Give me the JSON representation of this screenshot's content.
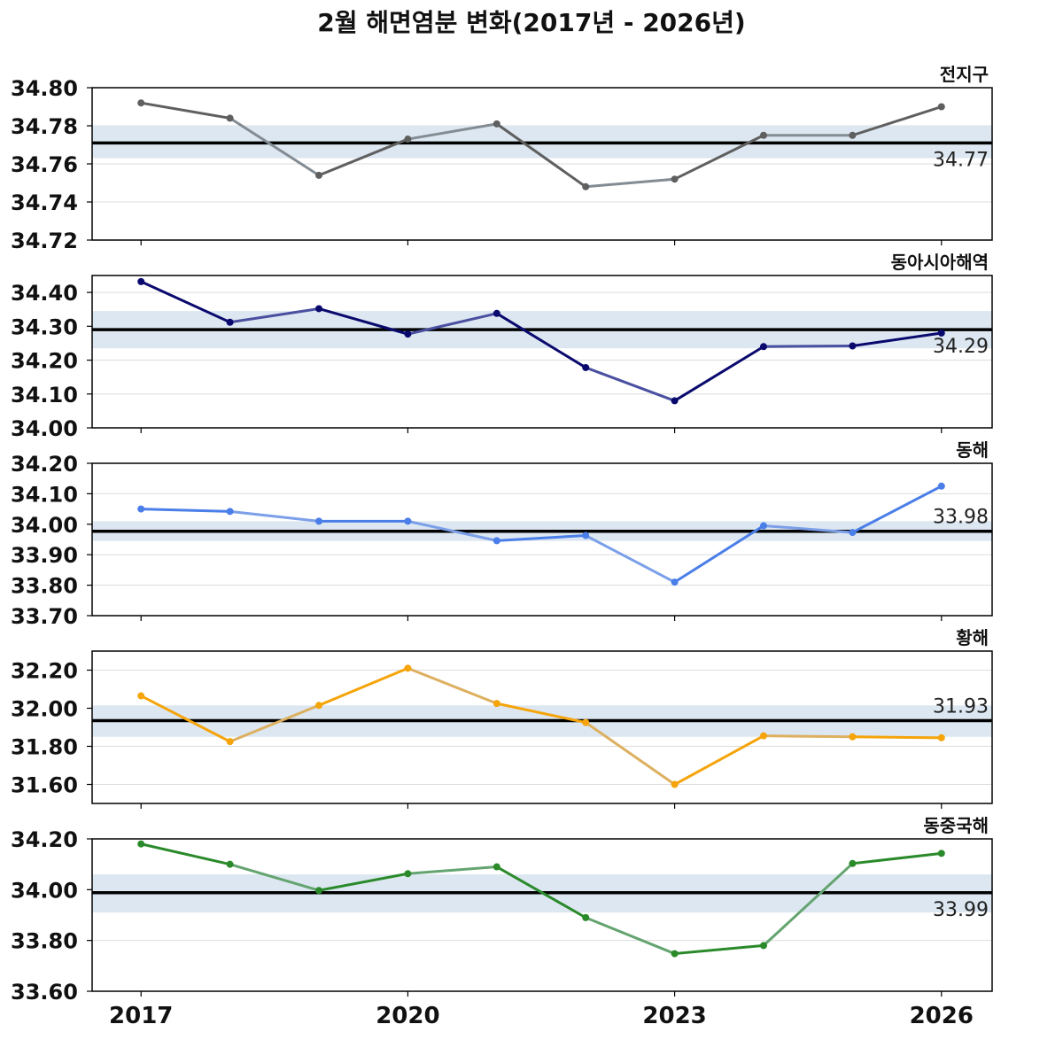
{
  "title": "2월 해면염분 변화(2017년 - 2026년)",
  "chart_data": {
    "type": "line",
    "x": [
      2017,
      2018,
      2019,
      2020,
      2021,
      2022,
      2023,
      2024,
      2025,
      2026
    ],
    "x_tick_labels": [
      "2017",
      "2020",
      "2023",
      "2026"
    ],
    "x_tick_values": [
      2017,
      2020,
      2023,
      2026
    ],
    "band_color": "#dce7f1",
    "mean_line_color": "#000000",
    "panels": [
      {
        "title": "전지구",
        "values": [
          34.792,
          34.784,
          34.754,
          34.773,
          34.781,
          34.748,
          34.752,
          34.775,
          34.775,
          34.79
        ],
        "mean": 34.771,
        "mean_label": "34.77",
        "band": [
          34.763,
          34.78
        ],
        "ylim": [
          34.72,
          34.8
        ],
        "yticks": [
          34.72,
          34.74,
          34.76,
          34.78,
          34.8
        ],
        "ytick_labels": [
          "34.72",
          "34.74",
          "34.76",
          "34.78",
          "34.80"
        ],
        "dark_color": "#5f5f5f",
        "light_color": "#838b93",
        "label_pos": "below"
      },
      {
        "title": "동아시아해역",
        "values": [
          34.432,
          34.312,
          34.352,
          34.277,
          34.338,
          34.178,
          34.08,
          34.24,
          34.242,
          34.28
        ],
        "mean": 34.29,
        "mean_label": "34.29",
        "band": [
          34.235,
          34.345
        ],
        "ylim": [
          34.0,
          34.45
        ],
        "yticks": [
          34.0,
          34.1,
          34.2,
          34.3,
          34.4
        ],
        "ytick_labels": [
          "34.00",
          "34.10",
          "34.20",
          "34.30",
          "34.40"
        ],
        "dark_color": "#0a0a6e",
        "light_color": "#4a50a0",
        "label_pos": "below"
      },
      {
        "title": "동해",
        "values": [
          34.05,
          34.042,
          34.01,
          34.01,
          33.946,
          33.963,
          33.81,
          33.995,
          33.973,
          34.125
        ],
        "mean": 33.977,
        "mean_label": "33.98",
        "band": [
          33.945,
          34.01
        ],
        "ylim": [
          33.7,
          34.2
        ],
        "yticks": [
          33.7,
          33.8,
          33.9,
          34.0,
          34.1,
          34.2
        ],
        "ytick_labels": [
          "33.70",
          "33.80",
          "33.90",
          "34.00",
          "34.10",
          "34.20"
        ],
        "dark_color": "#4a7ee8",
        "light_color": "#7b9fe8",
        "label_pos": "above"
      },
      {
        "title": "황해",
        "values": [
          32.065,
          31.825,
          32.015,
          32.21,
          32.025,
          31.925,
          31.6,
          31.855,
          31.85,
          31.845
        ],
        "mean": 31.935,
        "mean_label": "31.93",
        "band": [
          31.85,
          32.015
        ],
        "ylim": [
          31.5,
          32.3
        ],
        "yticks": [
          31.6,
          31.8,
          32.0,
          32.2
        ],
        "ytick_labels": [
          "31.60",
          "31.80",
          "32.00",
          "32.20"
        ],
        "dark_color": "#f5a40a",
        "light_color": "#ddb060",
        "label_pos": "above"
      },
      {
        "title": "동중국해",
        "values": [
          34.18,
          34.1,
          33.997,
          34.063,
          34.09,
          33.89,
          33.748,
          33.78,
          34.103,
          34.143
        ],
        "mean": 33.988,
        "mean_label": "33.99",
        "band": [
          33.91,
          34.06
        ],
        "ylim": [
          33.6,
          34.2
        ],
        "yticks": [
          33.6,
          33.8,
          34.0,
          34.2
        ],
        "ytick_labels": [
          "33.60",
          "33.80",
          "34.00",
          "34.20"
        ],
        "dark_color": "#2a8a2a",
        "light_color": "#64a470",
        "label_pos": "below"
      }
    ]
  }
}
